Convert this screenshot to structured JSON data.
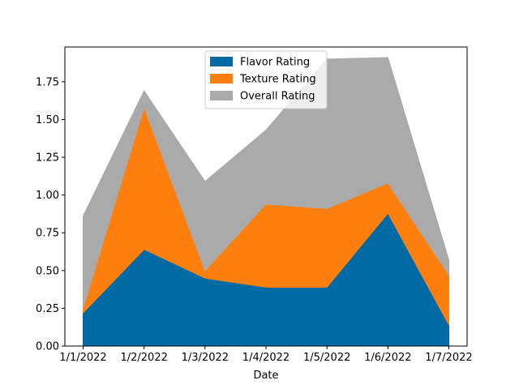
{
  "chart_data": {
    "type": "area",
    "stacked": true,
    "categories": [
      "1/1/2022",
      "1/2/2022",
      "1/3/2022",
      "1/4/2022",
      "1/5/2022",
      "1/6/2022",
      "1/7/2022"
    ],
    "series": [
      {
        "name": "Flavor Rating",
        "color": "#006aa5",
        "values": [
          0.22,
          0.64,
          0.45,
          0.39,
          0.39,
          0.88,
          0.14
        ]
      },
      {
        "name": "Texture Rating",
        "color": "#ff7f0e",
        "values": [
          0.03,
          0.94,
          0.05,
          0.55,
          0.52,
          0.2,
          0.33
        ]
      },
      {
        "name": "Overall Rating",
        "color": "#aaaaaa",
        "values": [
          0.61,
          0.11,
          0.59,
          0.49,
          0.99,
          0.83,
          0.1
        ]
      }
    ],
    "title": "",
    "xlabel": "Date",
    "ylabel": "",
    "ylim": [
      0,
      1.98
    ],
    "yticks": [
      "0.00",
      "0.25",
      "0.50",
      "0.75",
      "1.00",
      "1.25",
      "1.50",
      "1.75"
    ],
    "ytick_values": [
      0,
      0.25,
      0.5,
      0.75,
      1.0,
      1.25,
      1.5,
      1.75
    ],
    "grid": false,
    "legend_position": "top-center"
  }
}
